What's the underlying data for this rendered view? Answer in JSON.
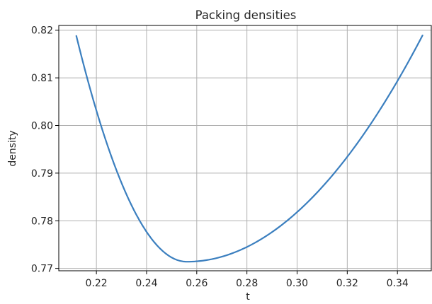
{
  "chart_data": {
    "type": "line",
    "title": "Packing densities",
    "xlabel": "t",
    "ylabel": "density",
    "xlim": [
      0.205,
      0.3535
    ],
    "ylim": [
      0.7695,
      0.821
    ],
    "xticks": [
      0.22,
      0.24,
      0.26,
      0.28,
      0.3,
      0.32,
      0.34
    ],
    "xtick_labels": [
      "0.22",
      "0.24",
      "0.26",
      "0.28",
      "0.30",
      "0.32",
      "0.34"
    ],
    "yticks": [
      0.77,
      0.78,
      0.79,
      0.8,
      0.81,
      0.82
    ],
    "ytick_labels": [
      "0.77",
      "0.78",
      "0.79",
      "0.80",
      "0.81",
      "0.82"
    ],
    "grid": true,
    "series": [
      {
        "color": "#3b7fbf",
        "x": [
          0.212,
          0.216,
          0.22,
          0.224,
          0.228,
          0.232,
          0.236,
          0.24,
          0.244,
          0.248,
          0.252,
          0.256,
          0.26,
          0.264,
          0.268,
          0.272,
          0.2755,
          0.28,
          0.284,
          0.288,
          0.292,
          0.296,
          0.3,
          0.304,
          0.308,
          0.312,
          0.316,
          0.32,
          0.324,
          0.328,
          0.332,
          0.336,
          0.34,
          0.344,
          0.35
        ],
        "y": [
          0.8188,
          0.8125,
          0.8066,
          0.8011,
          0.7959,
          0.7911,
          0.7867,
          0.7827,
          0.7792,
          0.7761,
          0.7735,
          0.7714,
          0.7743,
          0.7732,
          0.7725,
          0.7721,
          0.772,
          0.7722,
          0.7727,
          0.7735,
          0.7746,
          0.7759,
          0.7775,
          0.7795,
          0.7818,
          0.7843,
          0.7871,
          0.7902,
          0.7935,
          0.7971,
          0.801,
          0.8052,
          0.8096,
          0.8143,
          0.8189
        ]
      }
    ]
  }
}
